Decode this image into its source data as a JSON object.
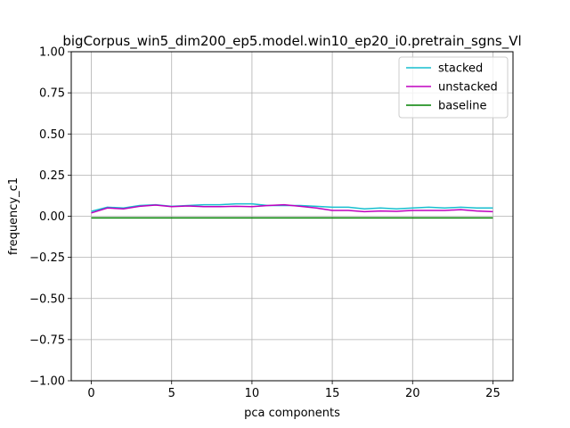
{
  "chart_data": {
    "type": "line",
    "title": "bigCorpus_win5_dim200_ep5.model.win10_ep20_i0.pretrain_sgns_Vl",
    "xlabel": "pca components",
    "ylabel": "frequency_c1",
    "xlim": [
      -1.25,
      26.25
    ],
    "ylim": [
      -1.0,
      1.0
    ],
    "xticks": [
      0,
      5,
      10,
      15,
      20,
      25
    ],
    "xtick_labels": [
      "0",
      "5",
      "10",
      "15",
      "20",
      "25"
    ],
    "yticks": [
      -1.0,
      -0.75,
      -0.5,
      -0.25,
      0.0,
      0.25,
      0.5,
      0.75,
      1.0
    ],
    "ytick_labels": [
      "−1.00",
      "−0.75",
      "−0.50",
      "−0.25",
      "0.00",
      "0.25",
      "0.50",
      "0.75",
      "1.00"
    ],
    "grid": true,
    "legend_position": "top-right",
    "x": [
      0,
      1,
      2,
      3,
      4,
      5,
      6,
      7,
      8,
      9,
      10,
      11,
      12,
      13,
      14,
      15,
      16,
      17,
      18,
      19,
      20,
      21,
      22,
      23,
      24,
      25
    ],
    "series": [
      {
        "name": "stacked",
        "color": "#17becf",
        "values": [
          0.03,
          0.055,
          0.05,
          0.065,
          0.07,
          0.06,
          0.065,
          0.07,
          0.07,
          0.075,
          0.075,
          0.065,
          0.065,
          0.065,
          0.06,
          0.055,
          0.055,
          0.045,
          0.05,
          0.045,
          0.05,
          0.055,
          0.05,
          0.055,
          0.05,
          0.05
        ]
      },
      {
        "name": "unstacked",
        "color": "#bf00bf",
        "values": [
          0.02,
          0.05,
          0.045,
          0.06,
          0.068,
          0.058,
          0.062,
          0.058,
          0.058,
          0.06,
          0.058,
          0.065,
          0.07,
          0.06,
          0.05,
          0.035,
          0.035,
          0.028,
          0.032,
          0.03,
          0.035,
          0.035,
          0.035,
          0.04,
          0.032,
          0.028
        ]
      },
      {
        "name": "baseline",
        "color": "#008000",
        "values": [
          -0.01,
          -0.01,
          -0.01,
          -0.01,
          -0.01,
          -0.01,
          -0.01,
          -0.01,
          -0.01,
          -0.01,
          -0.01,
          -0.01,
          -0.01,
          -0.01,
          -0.01,
          -0.01,
          -0.01,
          -0.01,
          -0.01,
          -0.01,
          -0.01,
          -0.01,
          -0.01,
          -0.01,
          -0.01,
          -0.01
        ]
      }
    ]
  }
}
